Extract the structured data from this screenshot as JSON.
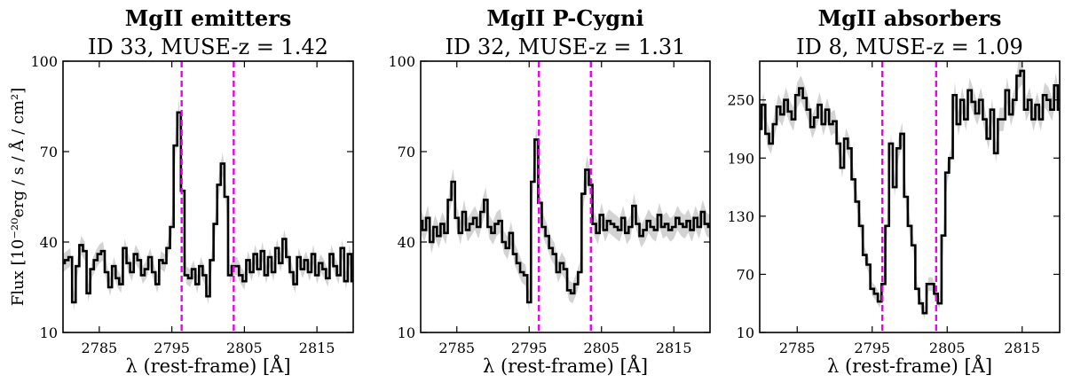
{
  "figure": {
    "ylabel": "Flux [10⁻²⁰erg / s / Å / cm²]",
    "line_color": "#000000",
    "band_color": "#d3d3d3",
    "marker_color": "#ee00ee"
  },
  "chart_data": [
    {
      "type": "line",
      "title": "MgII emitters",
      "subtitle": "ID 33, MUSE-z = 1.42",
      "xlabel": "λ (rest-frame) [Å]",
      "xlim": [
        2780,
        2820
      ],
      "ylim": [
        10,
        100
      ],
      "xticks": [
        2785,
        2795,
        2805,
        2815
      ],
      "xtick_labels": [
        "2785",
        "2795",
        "2805",
        "2815"
      ],
      "yticks": [
        10,
        40,
        70,
        100
      ],
      "ytick_labels": [
        "10",
        "40",
        "70",
        "100"
      ],
      "markers": [
        2796.35,
        2803.53
      ],
      "x": [
        2780,
        2780.5,
        2781,
        2781.5,
        2782,
        2782.5,
        2783,
        2783.5,
        2784,
        2784.5,
        2785,
        2785.5,
        2786,
        2786.5,
        2787,
        2787.5,
        2788,
        2788.5,
        2789,
        2789.5,
        2790,
        2790.5,
        2791,
        2791.5,
        2792,
        2792.5,
        2793,
        2793.5,
        2794,
        2794.5,
        2795,
        2795.5,
        2796,
        2796.5,
        2797,
        2797.5,
        2798,
        2798.5,
        2799,
        2799.5,
        2800,
        2800.5,
        2801,
        2801.5,
        2802,
        2802.5,
        2803,
        2803.5,
        2804,
        2804.5,
        2805,
        2805.5,
        2806,
        2806.5,
        2807,
        2807.5,
        2808,
        2808.5,
        2809,
        2809.5,
        2810,
        2810.5,
        2811,
        2811.5,
        2812,
        2812.5,
        2813,
        2813.5,
        2814,
        2814.5,
        2815,
        2815.5,
        2816,
        2816.5,
        2817,
        2817.5,
        2818,
        2818.5,
        2819,
        2819.5,
        2820
      ],
      "flux": [
        33,
        34,
        35,
        20,
        32,
        39,
        37,
        23,
        31,
        34,
        36,
        37,
        30,
        25,
        32,
        28,
        26,
        38,
        33,
        30,
        36,
        34,
        29,
        31,
        35,
        30,
        26,
        34,
        33,
        38,
        45,
        72,
        83,
        57,
        29,
        28,
        31,
        26,
        32,
        29,
        22,
        34,
        46,
        59,
        66,
        55,
        29,
        32,
        32,
        29,
        27,
        34,
        30,
        36,
        31,
        37,
        29,
        35,
        30,
        38,
        33,
        41,
        35,
        30,
        26,
        35,
        31,
        34,
        30,
        36,
        29,
        33,
        31,
        28,
        36,
        32,
        29,
        38,
        27,
        36,
        27
      ],
      "err": [
        3.0,
        3.0,
        3.0,
        2.9,
        3.0,
        3.1,
        3.1,
        2.9,
        3.0,
        3.0,
        3.1,
        3.1,
        3.0,
        2.9,
        3.0,
        2.9,
        2.9,
        3.1,
        3.0,
        3.0,
        3.1,
        3.0,
        2.9,
        3.0,
        3.0,
        3.0,
        2.9,
        3.0,
        3.0,
        3.1,
        3.3,
        4.0,
        4.3,
        3.6,
        2.9,
        2.9,
        3.0,
        2.9,
        3.0,
        2.9,
        2.8,
        3.0,
        3.3,
        3.6,
        3.8,
        3.5,
        2.9,
        3.0,
        3.0,
        2.9,
        2.9,
        3.0,
        3.0,
        3.1,
        3.0,
        3.1,
        2.9,
        3.0,
        3.0,
        3.1,
        3.0,
        3.2,
        3.0,
        3.0,
        2.9,
        3.0,
        3.0,
        3.0,
        3.0,
        3.1,
        2.9,
        3.0,
        3.0,
        2.9,
        3.1,
        3.0,
        2.9,
        3.1,
        2.9,
        3.1,
        2.9
      ]
    },
    {
      "type": "line",
      "title": "MgII P-Cygni",
      "subtitle": "ID 32, MUSE-z = 1.31",
      "xlabel": "λ (rest-frame) [Å]",
      "xlim": [
        2780,
        2820
      ],
      "ylim": [
        10,
        100
      ],
      "xticks": [
        2785,
        2795,
        2805,
        2815
      ],
      "xtick_labels": [
        "2785",
        "2795",
        "2805",
        "2815"
      ],
      "yticks": [
        10,
        40,
        70,
        100
      ],
      "ytick_labels": [
        "10",
        "40",
        "70",
        "100"
      ],
      "markers": [
        2796.35,
        2803.53
      ],
      "x": [
        2780,
        2780.5,
        2781,
        2781.5,
        2782,
        2782.5,
        2783,
        2783.5,
        2784,
        2784.5,
        2785,
        2785.5,
        2786,
        2786.5,
        2787,
        2787.5,
        2788,
        2788.5,
        2789,
        2789.5,
        2790,
        2790.5,
        2791,
        2791.5,
        2792,
        2792.5,
        2793,
        2793.5,
        2794,
        2794.5,
        2795,
        2795.5,
        2796,
        2796.5,
        2797,
        2797.5,
        2798,
        2798.5,
        2799,
        2799.5,
        2800,
        2800.5,
        2801,
        2801.5,
        2802,
        2802.5,
        2803,
        2803.5,
        2804,
        2804.5,
        2805,
        2805.5,
        2806,
        2806.5,
        2807,
        2807.5,
        2808,
        2808.5,
        2809,
        2809.5,
        2810,
        2810.5,
        2811,
        2811.5,
        2812,
        2812.5,
        2813,
        2813.5,
        2814,
        2814.5,
        2815,
        2815.5,
        2816,
        2816.5,
        2817,
        2817.5,
        2818,
        2818.5,
        2819,
        2819.5,
        2820
      ],
      "flux": [
        47,
        44,
        48,
        40,
        45,
        42,
        46,
        43,
        54,
        60,
        48,
        43,
        50,
        44,
        46,
        48,
        45,
        50,
        54,
        45,
        43,
        46,
        47,
        40,
        38,
        43,
        36,
        33,
        30,
        29,
        20,
        60,
        74,
        53,
        45,
        42,
        38,
        36,
        30,
        33,
        31,
        24,
        23,
        26,
        30,
        56,
        64,
        59,
        46,
        43,
        49,
        44,
        47,
        46,
        45,
        44,
        48,
        43,
        45,
        52,
        46,
        42,
        44,
        47,
        45,
        44,
        49,
        45,
        46,
        44,
        45,
        48,
        46,
        45,
        47,
        44,
        48,
        45,
        50,
        46,
        45
      ],
      "err": [
        4.0,
        3.9,
        4.0,
        3.8,
        3.9,
        3.8,
        3.9,
        3.8,
        4.2,
        4.4,
        4.0,
        3.8,
        4.0,
        3.9,
        3.9,
        4.0,
        3.9,
        4.0,
        4.2,
        3.9,
        3.8,
        3.9,
        4.0,
        3.8,
        3.7,
        3.8,
        3.6,
        3.6,
        3.5,
        3.5,
        3.3,
        4.4,
        4.8,
        4.1,
        3.9,
        3.8,
        3.7,
        3.7,
        3.5,
        3.6,
        3.5,
        3.4,
        3.4,
        3.4,
        3.5,
        4.3,
        4.6,
        4.4,
        3.9,
        3.8,
        4.0,
        3.9,
        3.9,
        3.9,
        3.9,
        3.9,
        4.0,
        3.8,
        3.9,
        4.1,
        3.9,
        3.8,
        3.9,
        3.9,
        3.9,
        3.9,
        4.0,
        3.9,
        3.9,
        3.9,
        3.9,
        4.0,
        3.9,
        3.9,
        3.9,
        3.9,
        4.0,
        3.9,
        4.0,
        3.9,
        3.9
      ]
    },
    {
      "type": "line",
      "title": "MgII absorbers",
      "subtitle": "ID 8, MUSE-z = 1.09",
      "xlabel": "λ (rest-frame) [Å]",
      "xlim": [
        2780,
        2820
      ],
      "ylim": [
        10,
        290
      ],
      "xticks": [
        2785,
        2795,
        2805,
        2815
      ],
      "xtick_labels": [
        "2785",
        "2795",
        "2805",
        "2815"
      ],
      "yticks": [
        10,
        70,
        130,
        190,
        250
      ],
      "ytick_labels": [
        "10",
        "70",
        "130",
        "190",
        "250"
      ],
      "markers": [
        2796.35,
        2803.53
      ],
      "x": [
        2780,
        2780.5,
        2781,
        2781.5,
        2782,
        2782.5,
        2783,
        2783.5,
        2784,
        2784.5,
        2785,
        2785.5,
        2786,
        2786.5,
        2787,
        2787.5,
        2788,
        2788.5,
        2789,
        2789.5,
        2790,
        2790.5,
        2791,
        2791.5,
        2792,
        2792.5,
        2793,
        2793.5,
        2794,
        2794.5,
        2795,
        2795.5,
        2796,
        2796.5,
        2797,
        2797.5,
        2798,
        2798.5,
        2799,
        2799.5,
        2800,
        2800.5,
        2801,
        2801.5,
        2802,
        2802.5,
        2803,
        2803.5,
        2804,
        2804.5,
        2805,
        2805.5,
        2806,
        2806.5,
        2807,
        2807.5,
        2808,
        2808.5,
        2809,
        2809.5,
        2810,
        2810.5,
        2811,
        2811.5,
        2812,
        2812.5,
        2813,
        2813.5,
        2814,
        2814.5,
        2815,
        2815.5,
        2816,
        2816.5,
        2817,
        2817.5,
        2818,
        2818.5,
        2819,
        2819.5,
        2820
      ],
      "flux": [
        220,
        245,
        215,
        205,
        225,
        243,
        235,
        250,
        238,
        230,
        255,
        262,
        252,
        240,
        222,
        232,
        245,
        225,
        240,
        225,
        228,
        205,
        180,
        210,
        200,
        168,
        145,
        120,
        90,
        80,
        55,
        50,
        42,
        60,
        120,
        205,
        160,
        200,
        215,
        150,
        120,
        100,
        55,
        40,
        30,
        60,
        60,
        50,
        40,
        110,
        175,
        190,
        255,
        225,
        250,
        230,
        260,
        248,
        236,
        250,
        230,
        210,
        240,
        195,
        230,
        230,
        260,
        235,
        250,
        275,
        280,
        240,
        250,
        230,
        245,
        230,
        255,
        250,
        240,
        265,
        240
      ],
      "err": [
        12,
        13,
        12,
        11,
        12,
        13,
        12,
        13,
        12,
        12,
        13,
        13,
        13,
        12,
        12,
        12,
        13,
        12,
        12,
        12,
        12,
        11,
        10,
        11,
        11,
        10,
        9,
        9,
        8,
        8,
        7,
        7,
        7,
        7,
        9,
        11,
        10,
        11,
        12,
        10,
        9,
        8,
        7,
        6,
        6,
        7,
        7,
        7,
        6,
        8,
        10,
        10,
        13,
        12,
        13,
        12,
        13,
        13,
        12,
        13,
        12,
        11,
        12,
        10,
        12,
        12,
        13,
        12,
        13,
        14,
        14,
        12,
        13,
        12,
        13,
        12,
        13,
        13,
        12,
        13,
        12
      ]
    }
  ]
}
